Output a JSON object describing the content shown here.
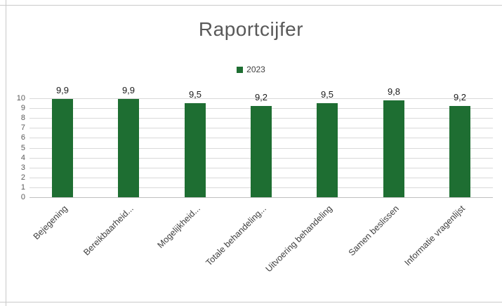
{
  "chart_data": {
    "type": "bar",
    "title": "Raportcijfer",
    "categories": [
      "Bejegening",
      "Bereikbaarheid...",
      "Mogelijkheid...",
      "Totale behandeling...",
      "Uitvoering behandeling",
      "Samen beslissen",
      "Informatie vragenlijst"
    ],
    "series": [
      {
        "name": "2023",
        "values": [
          9.9,
          9.9,
          9.5,
          9.2,
          9.5,
          9.8,
          9.2
        ],
        "value_labels": [
          "9,9",
          "9,9",
          "9,5",
          "9,2",
          "9,5",
          "9,8",
          "9,2"
        ],
        "color": "#1e6e32"
      }
    ],
    "ylabel": "",
    "xlabel": "",
    "ylim": [
      0,
      10
    ],
    "ytick_step": 1,
    "grid": true,
    "legend_position": "top"
  },
  "colors": {
    "bar_green": "#1e6e32",
    "title_gray": "#595959",
    "gridline": "#d9d9d9"
  }
}
